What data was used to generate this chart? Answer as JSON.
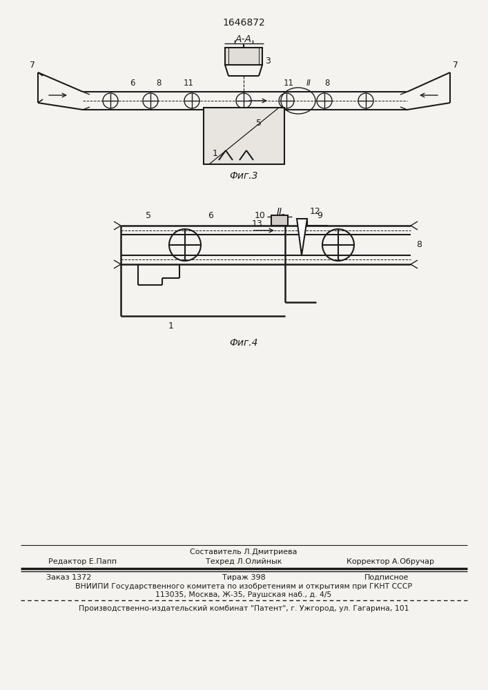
{
  "patent_number": "1646872",
  "fig3_label": "Фиг.3",
  "fig4_label": "Фиг.4",
  "section_label": "А-А",
  "bg_color": "#f5f3f0",
  "line_color": "#1a1a1a",
  "footer_text": [
    [
      "center",
      0.93,
      "Составитель Л.Дмитриева"
    ],
    [
      "left",
      0.07,
      "Редактор Е.Папп"
    ],
    [
      "center",
      0.93,
      "Техред Л.Олийнык"
    ],
    [
      "right",
      0.93,
      "Корректор А.Обручар"
    ]
  ]
}
